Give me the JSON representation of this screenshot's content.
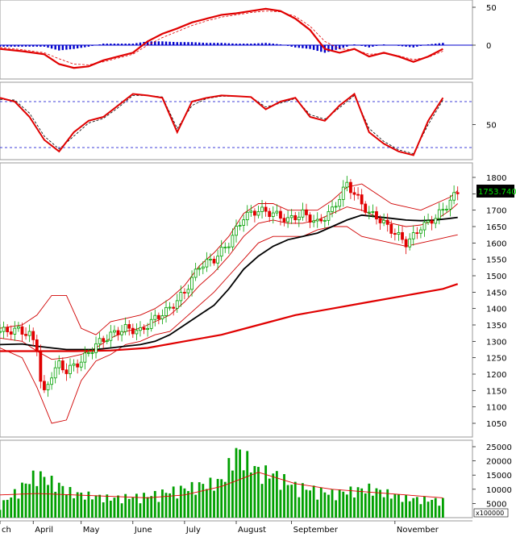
{
  "chart_data": [
    {
      "type": "line",
      "panel": "macd",
      "title": "",
      "y_ticks": [
        50,
        0
      ],
      "ylim": [
        -30,
        60
      ],
      "series": [
        {
          "role": "macd-line",
          "color": "#e00000",
          "x": [
            0,
            6,
            12,
            16,
            20,
            24,
            28,
            32,
            36,
            40,
            44,
            48,
            52,
            56,
            60,
            64,
            68,
            72,
            76,
            80,
            84,
            88,
            92,
            96,
            100,
            104,
            108,
            112,
            116,
            120
          ],
          "values": [
            -5,
            -8,
            -12,
            -25,
            -30,
            -28,
            -20,
            -15,
            -10,
            5,
            15,
            22,
            30,
            35,
            40,
            42,
            45,
            48,
            45,
            35,
            20,
            -5,
            -10,
            -5,
            -15,
            -10,
            -15,
            -22,
            -15,
            -5
          ]
        },
        {
          "role": "signal-line",
          "color": "#e00000",
          "dashed": true,
          "x": [
            0,
            6,
            12,
            16,
            20,
            24,
            28,
            32,
            36,
            40,
            44,
            48,
            52,
            56,
            60,
            64,
            68,
            72,
            76,
            80,
            84,
            88,
            92,
            96,
            100,
            104,
            108,
            112,
            116,
            120
          ],
          "values": [
            -3,
            -6,
            -10,
            -18,
            -25,
            -26,
            -22,
            -17,
            -12,
            0,
            10,
            18,
            26,
            32,
            37,
            40,
            43,
            45,
            44,
            38,
            25,
            5,
            -5,
            -6,
            -12,
            -11,
            -14,
            -19,
            -16,
            -8
          ]
        },
        {
          "role": "histogram",
          "color": "#0000cc",
          "x": [
            0,
            6,
            12,
            16,
            20,
            24,
            28,
            32,
            36,
            40,
            44,
            48,
            52,
            56,
            60,
            64,
            68,
            72,
            76,
            80,
            84,
            88,
            92,
            96,
            100,
            104,
            108,
            112,
            116,
            120
          ],
          "values": [
            -2,
            -2,
            -2,
            -7,
            -5,
            -2,
            2,
            2,
            2,
            5,
            5,
            4,
            4,
            3,
            3,
            2,
            2,
            3,
            1,
            -3,
            -5,
            -10,
            -5,
            1,
            -3,
            1,
            -1,
            -3,
            1,
            3
          ]
        }
      ]
    },
    {
      "type": "line",
      "panel": "stochastic",
      "title": "",
      "y_ticks": [
        50
      ],
      "ylim": [
        0,
        100
      ],
      "reference_lines": [
        80,
        20
      ],
      "series": [
        {
          "role": "k-line",
          "color": "#e00000",
          "x": [
            0,
            4,
            8,
            12,
            16,
            20,
            24,
            28,
            32,
            36,
            40,
            44,
            48,
            52,
            56,
            60,
            64,
            68,
            72,
            76,
            80,
            84,
            88,
            92,
            96,
            100,
            104,
            108,
            112,
            116,
            120
          ],
          "values": [
            85,
            80,
            60,
            30,
            15,
            40,
            55,
            60,
            75,
            90,
            88,
            85,
            40,
            80,
            85,
            88,
            87,
            86,
            70,
            80,
            85,
            60,
            55,
            75,
            90,
            40,
            25,
            15,
            10,
            55,
            85
          ]
        },
        {
          "role": "d-line",
          "color": "#000000",
          "dashed": true,
          "x": [
            0,
            4,
            8,
            12,
            16,
            20,
            24,
            28,
            32,
            36,
            40,
            44,
            48,
            52,
            56,
            60,
            64,
            68,
            72,
            76,
            80,
            84,
            88,
            92,
            96,
            100,
            104,
            108,
            112,
            116,
            120
          ],
          "values": [
            83,
            82,
            65,
            35,
            18,
            35,
            52,
            58,
            72,
            88,
            88,
            86,
            45,
            75,
            84,
            87,
            87,
            86,
            73,
            78,
            84,
            63,
            57,
            72,
            88,
            45,
            28,
            17,
            12,
            50,
            82
          ]
        }
      ]
    },
    {
      "type": "candlestick",
      "panel": "price",
      "title": "",
      "y_ticks": [
        1800,
        1750,
        1700,
        1650,
        1600,
        1550,
        1500,
        1450,
        1400,
        1350,
        1300,
        1250,
        1200,
        1150,
        1100,
        1050
      ],
      "ylim": [
        1020,
        1830
      ],
      "last_value_label": "1753.740",
      "x_labels": [
        {
          "label": "ch",
          "x": 0
        },
        {
          "label": "April",
          "x": 9
        },
        {
          "label": "May",
          "x": 22
        },
        {
          "label": "June",
          "x": 36
        },
        {
          "label": "July",
          "x": 50
        },
        {
          "label": "August",
          "x": 64
        },
        {
          "label": "September",
          "x": 79
        },
        {
          "label": "November",
          "x": 107
        }
      ],
      "close": {
        "x": [
          0,
          5,
          8,
          10,
          11,
          12,
          14,
          16,
          18,
          22,
          26,
          30,
          34,
          38,
          42,
          46,
          50,
          54,
          58,
          62,
          66,
          70,
          74,
          78,
          82,
          86,
          90,
          94,
          96,
          98,
          100,
          102,
          104,
          106,
          108,
          110,
          112,
          114,
          116,
          118,
          120,
          122,
          124
        ],
        "values": [
          1330,
          1335,
          1320,
          1280,
          1180,
          1140,
          1200,
          1230,
          1210,
          1240,
          1290,
          1320,
          1340,
          1330,
          1370,
          1400,
          1450,
          1530,
          1550,
          1600,
          1680,
          1700,
          1690,
          1670,
          1690,
          1660,
          1700,
          1780,
          1750,
          1720,
          1690,
          1680,
          1660,
          1640,
          1620,
          1600,
          1620,
          1650,
          1660,
          1680,
          1700,
          1730,
          1753.74
        ]
      },
      "overlays": [
        {
          "role": "bollinger-upper",
          "color": "#d00000",
          "x": [
            0,
            6,
            10,
            14,
            18,
            22,
            26,
            30,
            34,
            38,
            42,
            46,
            50,
            54,
            58,
            62,
            66,
            70,
            74,
            78,
            82,
            86,
            90,
            94,
            98,
            102,
            106,
            110,
            114,
            118,
            122,
            124
          ],
          "values": [
            1340,
            1350,
            1380,
            1440,
            1440,
            1340,
            1320,
            1360,
            1370,
            1380,
            1400,
            1430,
            1470,
            1530,
            1570,
            1620,
            1690,
            1720,
            1720,
            1700,
            1700,
            1700,
            1730,
            1770,
            1780,
            1750,
            1720,
            1710,
            1700,
            1720,
            1740,
            1760
          ]
        },
        {
          "role": "bollinger-middle",
          "color": "#d00000",
          "x": [
            0,
            6,
            10,
            14,
            18,
            22,
            26,
            30,
            34,
            38,
            42,
            46,
            50,
            54,
            58,
            62,
            66,
            70,
            74,
            78,
            82,
            86,
            90,
            94,
            98,
            102,
            106,
            110,
            114,
            118,
            122,
            124
          ],
          "values": [
            1310,
            1300,
            1270,
            1245,
            1250,
            1260,
            1280,
            1310,
            1330,
            1340,
            1360,
            1380,
            1420,
            1470,
            1510,
            1560,
            1620,
            1660,
            1670,
            1660,
            1660,
            1670,
            1690,
            1710,
            1700,
            1680,
            1660,
            1650,
            1655,
            1670,
            1700,
            1720
          ]
        },
        {
          "role": "bollinger-lower",
          "color": "#d00000",
          "x": [
            0,
            6,
            10,
            14,
            18,
            22,
            26,
            30,
            34,
            38,
            42,
            46,
            50,
            54,
            58,
            62,
            66,
            70,
            74,
            78,
            82,
            86,
            90,
            94,
            98,
            102,
            106,
            110,
            114,
            118,
            122,
            124
          ],
          "values": [
            1280,
            1250,
            1160,
            1050,
            1060,
            1180,
            1240,
            1260,
            1290,
            1300,
            1320,
            1330,
            1370,
            1410,
            1450,
            1500,
            1550,
            1600,
            1620,
            1620,
            1620,
            1640,
            1650,
            1650,
            1620,
            1610,
            1600,
            1590,
            1600,
            1610,
            1620,
            1625
          ]
        },
        {
          "role": "ma-medium",
          "color": "#000000",
          "x": [
            0,
            6,
            10,
            14,
            18,
            22,
            26,
            30,
            34,
            38,
            42,
            46,
            50,
            54,
            58,
            62,
            66,
            70,
            74,
            78,
            82,
            86,
            90,
            94,
            98,
            102,
            106,
            110,
            114,
            118,
            122,
            124
          ],
          "values": [
            1290,
            1292,
            1285,
            1280,
            1275,
            1275,
            1275,
            1280,
            1285,
            1290,
            1300,
            1320,
            1350,
            1380,
            1410,
            1460,
            1520,
            1560,
            1590,
            1610,
            1620,
            1630,
            1650,
            1670,
            1685,
            1680,
            1675,
            1670,
            1668,
            1670,
            1675,
            1678
          ]
        },
        {
          "role": "ma-long",
          "color": "#e00000",
          "x": [
            0,
            10,
            20,
            30,
            40,
            50,
            60,
            70,
            80,
            90,
            100,
            110,
            120,
            124
          ],
          "values": [
            1270,
            1270,
            1270,
            1272,
            1280,
            1300,
            1320,
            1350,
            1380,
            1400,
            1420,
            1440,
            1460,
            1475
          ]
        }
      ]
    },
    {
      "type": "bar",
      "panel": "volume",
      "title": "",
      "y_ticks": [
        25000,
        20000,
        15000,
        10000,
        5000
      ],
      "ylim": [
        0,
        28000
      ],
      "unit_label": "x100000",
      "values_sample": {
        "x": [
          0,
          10,
          20,
          30,
          40,
          50,
          60,
          64,
          66,
          70,
          74,
          80,
          90,
          100,
          110,
          120
        ],
        "values": [
          5000,
          18000,
          10000,
          8000,
          9000,
          12000,
          15000,
          27000,
          25000,
          19000,
          18000,
          13000,
          10000,
          12000,
          8000,
          7000
        ]
      },
      "overlay": {
        "role": "volume-ma",
        "color": "#e00000",
        "x": [
          0,
          10,
          20,
          30,
          40,
          50,
          60,
          70,
          80,
          90,
          100,
          110,
          120
        ],
        "values": [
          8000,
          8500,
          8000,
          7500,
          7000,
          8000,
          11000,
          16000,
          12000,
          10000,
          9000,
          8000,
          7000
        ]
      }
    }
  ]
}
